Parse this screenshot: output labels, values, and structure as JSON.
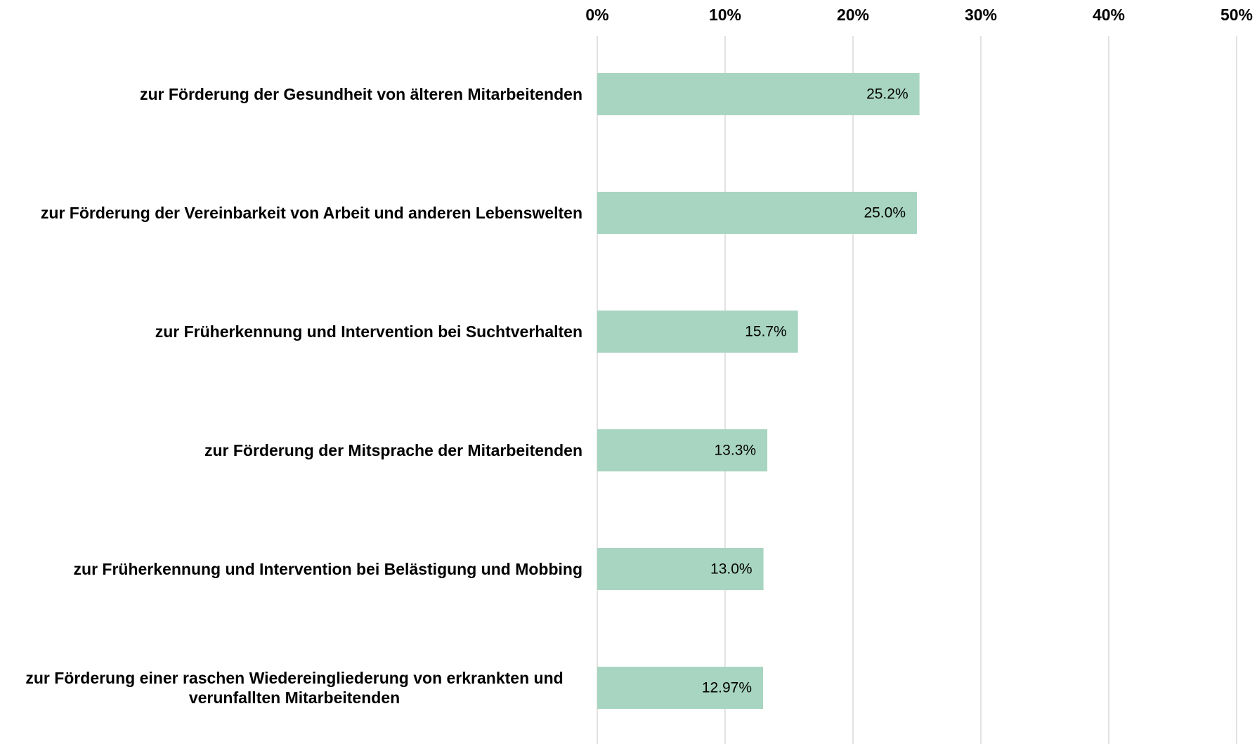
{
  "chart_data": {
    "type": "bar",
    "orientation": "horizontal",
    "categories": [
      "zur Förderung der Gesundheit von älteren Mitarbeitenden",
      "zur Förderung der Vereinbarkeit von Arbeit und anderen Lebenswelten",
      "zur Früherkennung und Intervention bei Suchtverhalten",
      "zur Förderung der Mitsprache der Mitarbeitenden",
      "zur Früherkennung und Intervention bei Belästigung und Mobbing",
      "zur Förderung einer raschen Wiedereingliederung von erkrankten und verunfallten Mitarbeitenden"
    ],
    "values": [
      25.2,
      25.0,
      15.7,
      13.3,
      13.0,
      12.97
    ],
    "value_labels": [
      "25.2%",
      "25.0%",
      "15.7%",
      "13.3%",
      "13.0%",
      "12.97%"
    ],
    "color": "#a8d5c2",
    "xlim": [
      0,
      50
    ],
    "xticks": [
      {
        "value": 0,
        "label": "0%"
      },
      {
        "value": 10,
        "label": "10%"
      },
      {
        "value": 20,
        "label": "20%"
      },
      {
        "value": 30,
        "label": "30%"
      },
      {
        "value": 40,
        "label": "40%"
      },
      {
        "value": 50,
        "label": "50%"
      }
    ],
    "grid": true
  }
}
